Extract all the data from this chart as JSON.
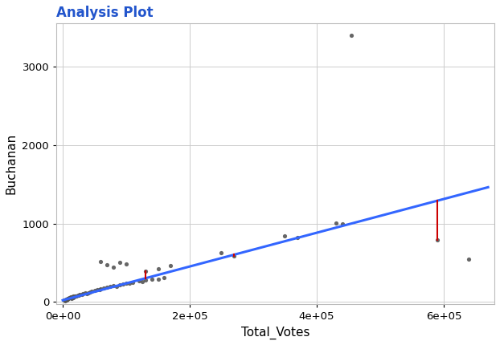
{
  "title": "Analysis Plot",
  "xlabel": "Total_Votes",
  "ylabel": "Buchanan",
  "title_color": "#2255cc",
  "axis_label_color": "#000000",
  "tick_label_color": "#000000",
  "background_color": "#ffffff",
  "grid_color": "#cccccc",
  "scatter_color": "#555555",
  "line_color": "#3366ff",
  "residual_color": "#cc0000",
  "xlim": [
    -10000,
    680000
  ],
  "ylim": [
    -30,
    3550
  ],
  "xticks": [
    0,
    200000,
    400000,
    600000
  ],
  "yticks": [
    0,
    1000,
    2000,
    3000
  ],
  "scatter_points": [
    [
      2000,
      22
    ],
    [
      3000,
      28
    ],
    [
      4000,
      18
    ],
    [
      5000,
      35
    ],
    [
      6000,
      25
    ],
    [
      7000,
      30
    ],
    [
      8000,
      40
    ],
    [
      9000,
      45
    ],
    [
      10000,
      50
    ],
    [
      11000,
      55
    ],
    [
      12000,
      52
    ],
    [
      13000,
      60
    ],
    [
      14000,
      48
    ],
    [
      15000,
      65
    ],
    [
      16000,
      58
    ],
    [
      17000,
      70
    ],
    [
      18000,
      62
    ],
    [
      19000,
      75
    ],
    [
      20000,
      72
    ],
    [
      22000,
      80
    ],
    [
      24000,
      85
    ],
    [
      25000,
      90
    ],
    [
      27000,
      95
    ],
    [
      30000,
      100
    ],
    [
      32000,
      105
    ],
    [
      35000,
      120
    ],
    [
      38000,
      110
    ],
    [
      40000,
      115
    ],
    [
      43000,
      130
    ],
    [
      45000,
      140
    ],
    [
      50000,
      145
    ],
    [
      55000,
      160
    ],
    [
      58000,
      155
    ],
    [
      60000,
      165
    ],
    [
      65000,
      180
    ],
    [
      70000,
      190
    ],
    [
      75000,
      200
    ],
    [
      80000,
      210
    ],
    [
      85000,
      195
    ],
    [
      90000,
      220
    ],
    [
      95000,
      230
    ],
    [
      100000,
      240
    ],
    [
      105000,
      235
    ],
    [
      110000,
      250
    ],
    [
      120000,
      265
    ],
    [
      125000,
      260
    ],
    [
      130000,
      275
    ],
    [
      140000,
      290
    ],
    [
      150000,
      285
    ],
    [
      160000,
      310
    ],
    [
      60000,
      510
    ],
    [
      70000,
      470
    ],
    [
      80000,
      440
    ],
    [
      90000,
      500
    ],
    [
      100000,
      480
    ],
    [
      130000,
      390
    ],
    [
      150000,
      420
    ],
    [
      170000,
      460
    ],
    [
      250000,
      630
    ],
    [
      270000,
      590
    ],
    [
      350000,
      840
    ],
    [
      370000,
      820
    ],
    [
      430000,
      1010
    ],
    [
      440000,
      1000
    ],
    [
      455000,
      3400
    ],
    [
      590000,
      790
    ],
    [
      640000,
      545
    ]
  ],
  "line_x": [
    0,
    670000
  ],
  "line_slope": 0.00215,
  "line_intercept": 22,
  "residual_points": [
    [
      130000,
      390,
      302
    ],
    [
      270000,
      590,
      602
    ],
    [
      590000,
      790,
      1290
    ]
  ]
}
